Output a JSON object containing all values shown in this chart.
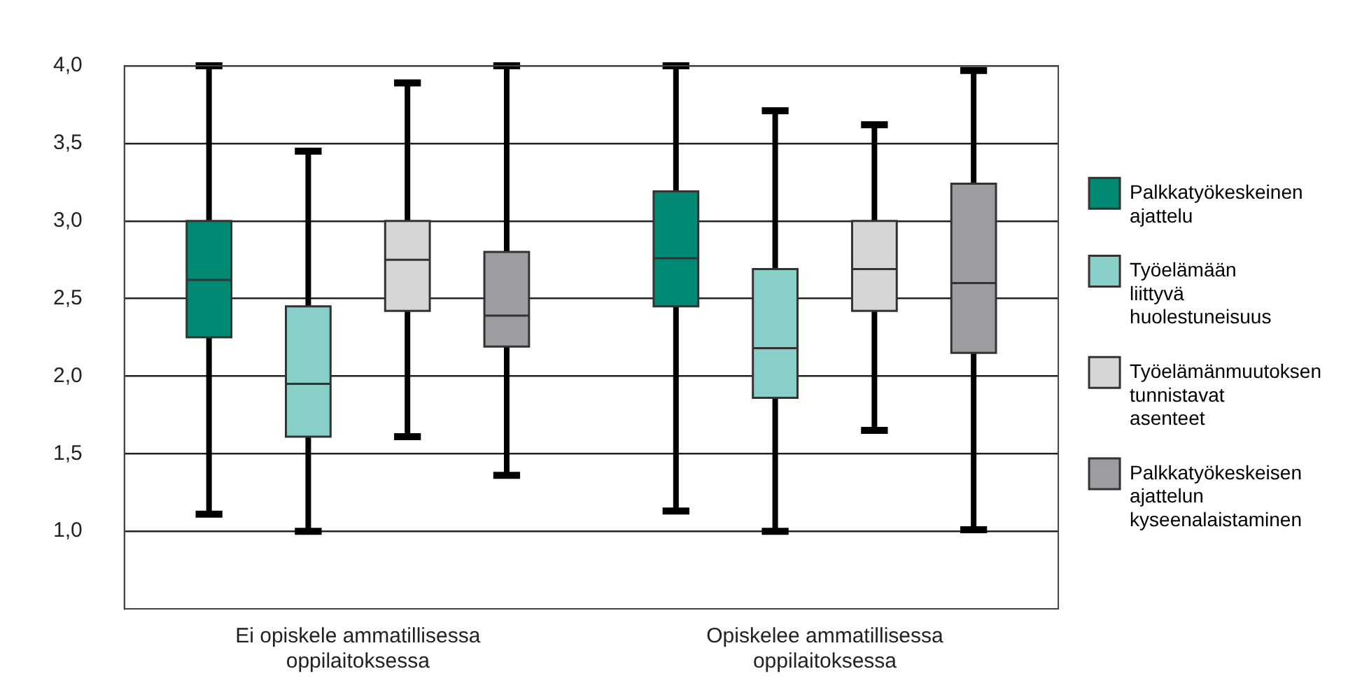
{
  "chart_data": {
    "type": "box",
    "categories": [
      "Ei opiskele ammatillisessa oppilaitoksessa",
      "Opiskelee ammatillisessa oppilaitoksessa"
    ],
    "series": [
      {
        "name": "Palkkatyökeskeinen ajattelu",
        "color": "#008a74",
        "boxes": [
          {
            "low": 1.11,
            "q1": 2.25,
            "median": 2.62,
            "q3": 3.0,
            "high": 4.0
          },
          {
            "low": 1.13,
            "q1": 2.45,
            "median": 2.76,
            "q3": 3.19,
            "high": 4.0
          }
        ]
      },
      {
        "name": "Työelämään liittyvä huolestuneisuus",
        "color": "#88cfc8",
        "boxes": [
          {
            "low": 1.0,
            "q1": 1.61,
            "median": 1.95,
            "q3": 2.45,
            "high": 3.45
          },
          {
            "low": 1.0,
            "q1": 1.86,
            "median": 2.18,
            "q3": 2.69,
            "high": 3.71
          }
        ]
      },
      {
        "name": "Työelämänmuutoksen tunnistavat asenteet",
        "color": "#d6d6d6",
        "boxes": [
          {
            "low": 1.61,
            "q1": 2.42,
            "median": 2.75,
            "q3": 3.0,
            "high": 3.89
          },
          {
            "low": 1.65,
            "q1": 2.42,
            "median": 2.69,
            "q3": 3.0,
            "high": 3.62
          }
        ]
      },
      {
        "name": "Palkkatyökeskeisen ajattelun kyseenalaistaminen",
        "color": "#9c9da1",
        "boxes": [
          {
            "low": 1.36,
            "q1": 2.19,
            "median": 2.39,
            "q3": 2.8,
            "high": 4.0
          },
          {
            "low": 1.01,
            "q1": 2.15,
            "median": 2.6,
            "q3": 3.24,
            "high": 3.97
          }
        ]
      }
    ],
    "ylim": [
      0.5,
      4.0
    ],
    "yticks": [
      {
        "value": 1.0,
        "label": "1,0"
      },
      {
        "value": 1.5,
        "label": "1,5"
      },
      {
        "value": 2.0,
        "label": "2,0"
      },
      {
        "value": 2.5,
        "label": "2,5"
      },
      {
        "value": 3.0,
        "label": "3,0"
      },
      {
        "value": 3.5,
        "label": "3,5"
      },
      {
        "value": 4.0,
        "label": "4,0"
      }
    ],
    "grid": "y",
    "legend": "right"
  }
}
